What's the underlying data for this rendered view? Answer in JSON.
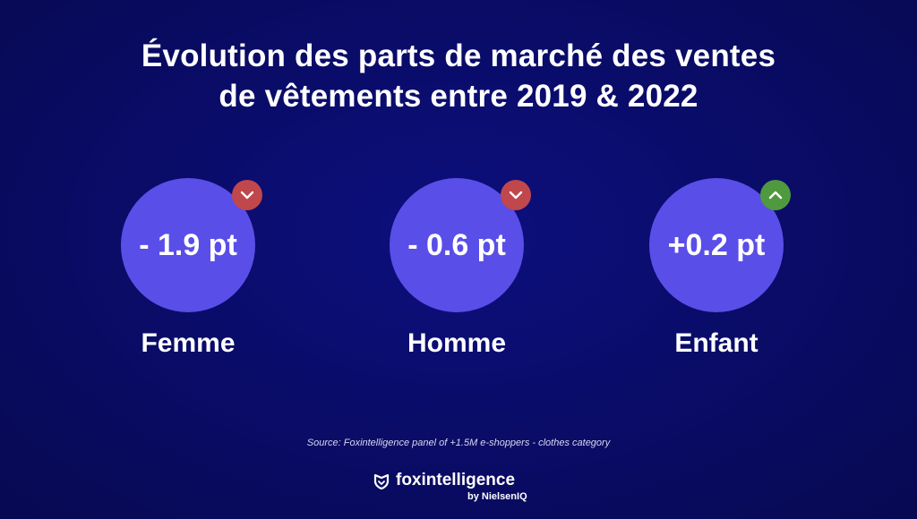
{
  "title": {
    "line1": "Évolution des parts de marché des ventes",
    "line2": "de vêtements entre 2019 & 2022"
  },
  "metrics": [
    {
      "value": "- 1.9 pt",
      "label": "Femme",
      "trend": "down",
      "trend_color": "#c0474b",
      "circle_color": "#5a4ee8"
    },
    {
      "value": "- 0.6 pt",
      "label": "Homme",
      "trend": "down",
      "trend_color": "#c0474b",
      "circle_color": "#5a4ee8"
    },
    {
      "value": "+0.2 pt",
      "label": "Enfant",
      "trend": "up",
      "trend_color": "#4f9a3e",
      "circle_color": "#5a4ee8"
    }
  ],
  "source": "Source: Foxintelligence panel of +1.5M e-shoppers - clothes category",
  "logo": {
    "name": "foxintelligence",
    "sub": "by NielsenIQ",
    "icon": "fox-shield-icon"
  }
}
